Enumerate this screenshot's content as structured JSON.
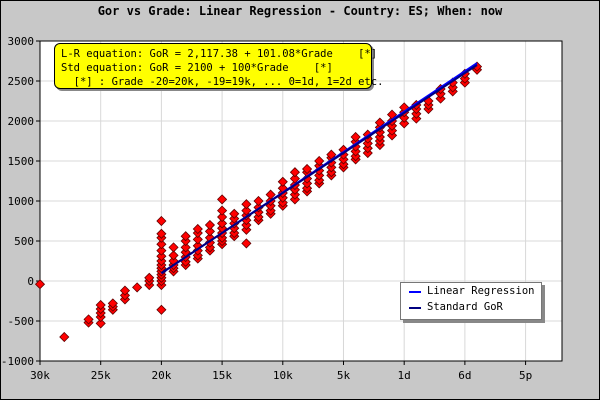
{
  "chart_data": {
    "type": "scatter",
    "title": "Gor vs Grade: Linear Regression - Country: ES; When: now",
    "xlabel": "",
    "ylabel": "",
    "xlim": [
      -30,
      13
    ],
    "ylim": [
      -1000,
      3000
    ],
    "x_ticks": [
      {
        "value": -30,
        "label": "30k"
      },
      {
        "value": -25,
        "label": "25k"
      },
      {
        "value": -20,
        "label": "20k"
      },
      {
        "value": -15,
        "label": "15k"
      },
      {
        "value": -10,
        "label": "10k"
      },
      {
        "value": -5,
        "label": "5k"
      },
      {
        "value": 0,
        "label": "1d"
      },
      {
        "value": 5,
        "label": "6d"
      },
      {
        "value": 10,
        "label": "5p"
      }
    ],
    "y_ticks": [
      -1000,
      -500,
      0,
      500,
      1000,
      1500,
      2000,
      2500,
      3000
    ],
    "grid": true,
    "annotation_lines": [
      "L-R equation: GoR = 2,117.38 + 101.08*Grade    [*]",
      "Std equation: GoR = 2100 + 100*Grade    [*]",
      "  [*] : Grade -20=20k, -19=19k, ... 0=1d, 1=2d etc."
    ],
    "legend_position": "bottom-right",
    "series": [
      {
        "name": "Linear Regression",
        "kind": "line",
        "color": "#0000ff",
        "x": [
          -20,
          6
        ],
        "y": [
          95.78,
          2723.86
        ]
      },
      {
        "name": "Standard GoR",
        "kind": "line",
        "color": "#000080",
        "x": [
          -20,
          6
        ],
        "y": [
          100,
          2700
        ]
      },
      {
        "name": "",
        "kind": "scatter",
        "color": "#ff0000",
        "points": [
          [
            -30,
            -40
          ],
          [
            -28,
            -700
          ],
          [
            -26,
            -520
          ],
          [
            -26,
            -480
          ],
          [
            -25,
            -530
          ],
          [
            -25,
            -450
          ],
          [
            -25,
            -400
          ],
          [
            -25,
            -350
          ],
          [
            -25,
            -300
          ],
          [
            -24,
            -360
          ],
          [
            -24,
            -320
          ],
          [
            -24,
            -280
          ],
          [
            -23,
            -230
          ],
          [
            -23,
            -180
          ],
          [
            -23,
            -120
          ],
          [
            -22,
            -80
          ],
          [
            -21,
            -50
          ],
          [
            -21,
            0
          ],
          [
            -21,
            40
          ],
          [
            -20,
            -360
          ],
          [
            -20,
            -50
          ],
          [
            -20,
            0
          ],
          [
            -20,
            40
          ],
          [
            -20,
            80
          ],
          [
            -20,
            120
          ],
          [
            -20,
            160
          ],
          [
            -20,
            200
          ],
          [
            -20,
            250
          ],
          [
            -20,
            310
          ],
          [
            -20,
            380
          ],
          [
            -20,
            460
          ],
          [
            -20,
            540
          ],
          [
            -20,
            590
          ],
          [
            -20,
            750
          ],
          [
            -19,
            120
          ],
          [
            -19,
            160
          ],
          [
            -19,
            200
          ],
          [
            -19,
            250
          ],
          [
            -19,
            320
          ],
          [
            -19,
            420
          ],
          [
            -18,
            200
          ],
          [
            -18,
            240
          ],
          [
            -18,
            300
          ],
          [
            -18,
            360
          ],
          [
            -18,
            420
          ],
          [
            -18,
            500
          ],
          [
            -18,
            560
          ],
          [
            -17,
            280
          ],
          [
            -17,
            320
          ],
          [
            -17,
            380
          ],
          [
            -17,
            440
          ],
          [
            -17,
            520
          ],
          [
            -17,
            600
          ],
          [
            -17,
            650
          ],
          [
            -16,
            380
          ],
          [
            -16,
            420
          ],
          [
            -16,
            480
          ],
          [
            -16,
            540
          ],
          [
            -16,
            620
          ],
          [
            -16,
            700
          ],
          [
            -15,
            460
          ],
          [
            -15,
            500
          ],
          [
            -15,
            540
          ],
          [
            -15,
            600
          ],
          [
            -15,
            660
          ],
          [
            -15,
            720
          ],
          [
            -15,
            800
          ],
          [
            -15,
            880
          ],
          [
            -15,
            1020
          ],
          [
            -14,
            560
          ],
          [
            -14,
            600
          ],
          [
            -14,
            660
          ],
          [
            -14,
            720
          ],
          [
            -14,
            780
          ],
          [
            -14,
            840
          ],
          [
            -13,
            470
          ],
          [
            -13,
            640
          ],
          [
            -13,
            700
          ],
          [
            -13,
            760
          ],
          [
            -13,
            820
          ],
          [
            -13,
            880
          ],
          [
            -13,
            960
          ],
          [
            -12,
            760
          ],
          [
            -12,
            800
          ],
          [
            -12,
            860
          ],
          [
            -12,
            920
          ],
          [
            -12,
            1000
          ],
          [
            -11,
            840
          ],
          [
            -11,
            880
          ],
          [
            -11,
            940
          ],
          [
            -11,
            1000
          ],
          [
            -11,
            1080
          ],
          [
            -10,
            940
          ],
          [
            -10,
            980
          ],
          [
            -10,
            1040
          ],
          [
            -10,
            1100
          ],
          [
            -10,
            1160
          ],
          [
            -10,
            1240
          ],
          [
            -9,
            1020
          ],
          [
            -9,
            1080
          ],
          [
            -9,
            1140
          ],
          [
            -9,
            1200
          ],
          [
            -9,
            1280
          ],
          [
            -9,
            1360
          ],
          [
            -8,
            1120
          ],
          [
            -8,
            1160
          ],
          [
            -8,
            1220
          ],
          [
            -8,
            1280
          ],
          [
            -8,
            1360
          ],
          [
            -8,
            1400
          ],
          [
            -7,
            1220
          ],
          [
            -7,
            1260
          ],
          [
            -7,
            1320
          ],
          [
            -7,
            1380
          ],
          [
            -7,
            1440
          ],
          [
            -7,
            1500
          ],
          [
            -6,
            1320
          ],
          [
            -6,
            1360
          ],
          [
            -6,
            1420
          ],
          [
            -6,
            1480
          ],
          [
            -6,
            1540
          ],
          [
            -6,
            1580
          ],
          [
            -5,
            1420
          ],
          [
            -5,
            1460
          ],
          [
            -5,
            1520
          ],
          [
            -5,
            1580
          ],
          [
            -5,
            1640
          ],
          [
            -4,
            1520
          ],
          [
            -4,
            1560
          ],
          [
            -4,
            1620
          ],
          [
            -4,
            1680
          ],
          [
            -4,
            1740
          ],
          [
            -4,
            1800
          ],
          [
            -3,
            1600
          ],
          [
            -3,
            1660
          ],
          [
            -3,
            1720
          ],
          [
            -3,
            1780
          ],
          [
            -3,
            1830
          ],
          [
            -2,
            1700
          ],
          [
            -2,
            1750
          ],
          [
            -2,
            1800
          ],
          [
            -2,
            1860
          ],
          [
            -2,
            1920
          ],
          [
            -2,
            1980
          ],
          [
            -1,
            1820
          ],
          [
            -1,
            1880
          ],
          [
            -1,
            1940
          ],
          [
            -1,
            2000
          ],
          [
            -1,
            2080
          ],
          [
            0,
            1970
          ],
          [
            0,
            2040
          ],
          [
            0,
            2110
          ],
          [
            0,
            2170
          ],
          [
            1,
            2030
          ],
          [
            1,
            2090
          ],
          [
            1,
            2150
          ],
          [
            1,
            2200
          ],
          [
            2,
            2150
          ],
          [
            2,
            2200
          ],
          [
            2,
            2250
          ],
          [
            3,
            2280
          ],
          [
            3,
            2340
          ],
          [
            3,
            2400
          ],
          [
            4,
            2370
          ],
          [
            4,
            2420
          ],
          [
            4,
            2480
          ],
          [
            5,
            2480
          ],
          [
            5,
            2530
          ],
          [
            5,
            2590
          ],
          [
            6,
            2640
          ],
          [
            6,
            2680
          ]
        ]
      }
    ]
  }
}
